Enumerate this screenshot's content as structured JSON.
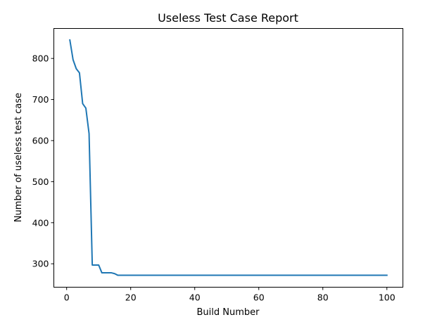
{
  "chart_data": {
    "type": "line",
    "title": "Useless Test Case Report",
    "xlabel": "Build Number",
    "ylabel": "Number of useless test case",
    "xlim": [
      -4,
      105
    ],
    "ylim": [
      243,
      873
    ],
    "xticks": [
      0,
      20,
      40,
      60,
      80,
      100
    ],
    "yticks": [
      300,
      400,
      500,
      600,
      700,
      800
    ],
    "grid": false,
    "legend": "none",
    "series": [
      {
        "color": "#1f77b4",
        "x": [
          1,
          2,
          3,
          4,
          5,
          6,
          7,
          8,
          9,
          10,
          11,
          12,
          13,
          14,
          15,
          16,
          17,
          100
        ],
        "y": [
          845,
          797,
          775,
          765,
          690,
          679,
          617,
          297,
          297,
          297,
          278,
          278,
          278,
          278,
          276,
          272,
          272,
          272
        ]
      }
    ]
  }
}
